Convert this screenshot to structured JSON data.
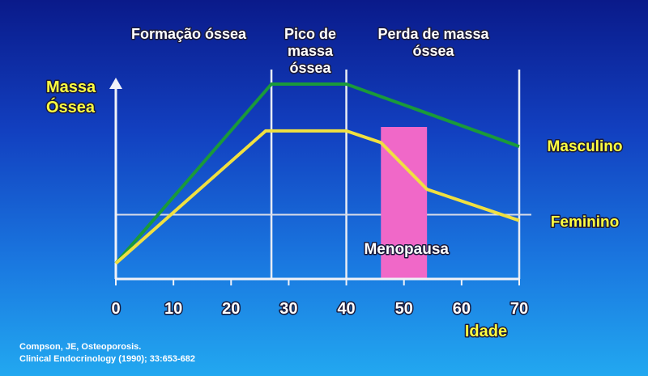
{
  "chart_data": {
    "type": "line",
    "xlabel": "Idade",
    "ylabel_lines": [
      "Massa",
      "Óssea"
    ],
    "xlim": [
      0,
      70
    ],
    "ylim": [
      0,
      100
    ],
    "x_ticks": [
      0,
      10,
      20,
      30,
      40,
      50,
      60,
      70
    ],
    "phases": [
      {
        "lines": [
          "Formação óssea"
        ],
        "x_center": 17
      },
      {
        "lines": [
          "Pico de",
          "massa",
          "óssea"
        ],
        "x_center": 34
      },
      {
        "lines": [
          "Perda de massa",
          "óssea"
        ],
        "x_center": 55
      }
    ],
    "phase_boundaries": [
      27,
      40,
      70
    ],
    "series": [
      {
        "name": "Masculino",
        "color": "#1a9a3a",
        "label_color": "#ffff40",
        "x": [
          0,
          27,
          40,
          70
        ],
        "y": [
          8,
          100,
          100,
          68
        ]
      },
      {
        "name": "Feminino",
        "color": "#f0e040",
        "label_color": "#ffff40",
        "x": [
          0,
          26,
          40,
          46,
          54,
          70
        ],
        "y": [
          8,
          76,
          76,
          70,
          46,
          30
        ]
      }
    ],
    "reference_line_y": 33,
    "menopause": {
      "label": "Menopausa",
      "x_start": 46,
      "x_end": 54,
      "y_top": 78,
      "color": "#f068c8"
    }
  },
  "citation": {
    "line1": "Compson, JE, Osteoporosis.",
    "line2": "Clinical Endocrinology (1990); 33:653-682"
  }
}
